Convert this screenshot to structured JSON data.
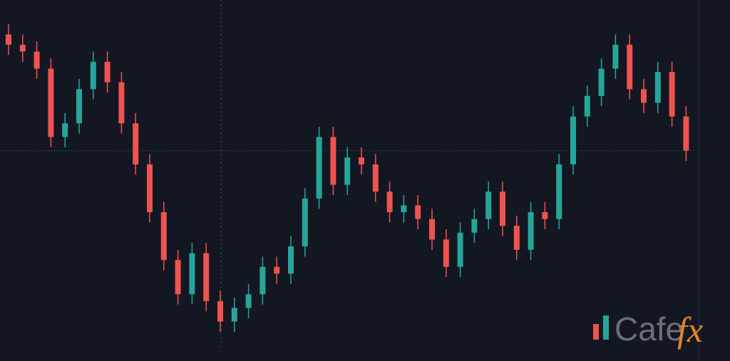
{
  "chart_data": {
    "type": "candlestick",
    "open": [
      92,
      89,
      87,
      82,
      62,
      66,
      76,
      84,
      78,
      66,
      54,
      40,
      26,
      16,
      28,
      14,
      8,
      12,
      16,
      24,
      22,
      30,
      44,
      62,
      48,
      56,
      54,
      46,
      40,
      42,
      38,
      32,
      24,
      34,
      38,
      46,
      36,
      29,
      40,
      38,
      54,
      68,
      74,
      82,
      89,
      76,
      72,
      81,
      68
    ],
    "high": [
      95,
      92,
      90,
      85,
      69,
      79,
      87,
      87,
      81,
      69,
      57,
      43,
      29,
      31,
      31,
      17,
      15,
      19,
      27,
      27,
      33,
      47,
      65,
      65,
      59,
      59,
      57,
      49,
      45,
      45,
      41,
      35,
      37,
      41,
      49,
      49,
      39,
      43,
      43,
      57,
      71,
      77,
      85,
      92,
      92,
      79,
      84,
      84,
      71
    ],
    "low": [
      86,
      84,
      79,
      59,
      59,
      63,
      73,
      75,
      63,
      51,
      37,
      23,
      13,
      13,
      11,
      5,
      5,
      9,
      13,
      19,
      19,
      27,
      41,
      45,
      45,
      51,
      43,
      37,
      37,
      35,
      29,
      21,
      21,
      31,
      35,
      33,
      26,
      26,
      35,
      35,
      51,
      65,
      71,
      79,
      73,
      69,
      69,
      65,
      55
    ],
    "close": [
      89,
      87,
      82,
      62,
      66,
      76,
      84,
      78,
      66,
      54,
      40,
      26,
      16,
      28,
      14,
      8,
      12,
      16,
      24,
      22,
      30,
      44,
      62,
      48,
      56,
      54,
      46,
      40,
      42,
      38,
      32,
      24,
      34,
      38,
      46,
      36,
      29,
      40,
      38,
      54,
      68,
      74,
      82,
      89,
      76,
      72,
      81,
      68,
      58
    ],
    "up_color": "#26a69a",
    "down_color": "#ef5350",
    "ylim": [
      0,
      100
    ],
    "watermark": [
      "Cafe",
      "fx"
    ]
  }
}
